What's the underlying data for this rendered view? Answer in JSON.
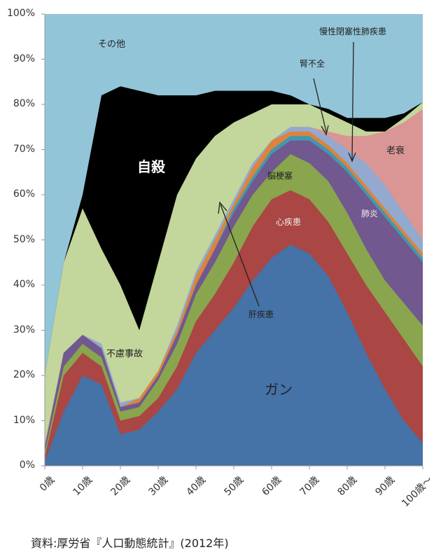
{
  "chart_data": {
    "type": "area",
    "stacked": true,
    "normalized_percent": true,
    "values_are_cumulative_tops": true,
    "x": [
      0,
      5,
      10,
      15,
      20,
      25,
      30,
      35,
      40,
      45,
      50,
      55,
      60,
      65,
      70,
      75,
      80,
      85,
      90,
      95,
      100
    ],
    "x_tick_labels": [
      "0歳",
      "10歳",
      "20歳",
      "30歳",
      "40歳",
      "50歳",
      "60歳",
      "70歳",
      "80歳",
      "90歳",
      "100歳～"
    ],
    "y_tick_labels": [
      "0%",
      "10%",
      "20%",
      "30%",
      "40%",
      "50%",
      "60%",
      "70%",
      "80%",
      "90%",
      "100%"
    ],
    "ylim": [
      0,
      100
    ],
    "series": [
      {
        "name": "ガン",
        "color": "#4572A7",
        "values": [
          1,
          12,
          20,
          18,
          7,
          8,
          12,
          17,
          25,
          30,
          35,
          41,
          46,
          49,
          47,
          42,
          34,
          25,
          17,
          10,
          5
        ]
      },
      {
        "name": "心疾患",
        "color": "#AA4643",
        "values": [
          2,
          20,
          25,
          22,
          10,
          11,
          15,
          22,
          32,
          38,
          45,
          53,
          59,
          61,
          59,
          54,
          47,
          40,
          34,
          28,
          22
        ]
      },
      {
        "name": "脳梗塞",
        "color": "#89A54E",
        "values": [
          3,
          22,
          27,
          24,
          12,
          13,
          19,
          27,
          38,
          45,
          53,
          60,
          65,
          69,
          67,
          63,
          56,
          48,
          41,
          36,
          31
        ]
      },
      {
        "name": "肺炎",
        "color": "#71588F",
        "values": [
          4,
          25,
          29,
          26,
          13,
          14,
          20,
          29,
          40,
          48,
          56,
          63,
          69,
          72,
          72,
          69,
          65,
          60,
          55,
          50,
          45
        ]
      },
      {
        "name": "慢性閉塞性肺疾患",
        "color": "#4198AF",
        "values": [
          4,
          25,
          29,
          26,
          13,
          14,
          20,
          29,
          40,
          48,
          57,
          64,
          70,
          73,
          73,
          70,
          66,
          61,
          56,
          51,
          46
        ]
      },
      {
        "name": "肝疾患",
        "color": "#DB843D",
        "values": [
          4.5,
          25,
          29,
          26,
          13,
          15,
          21,
          30,
          42,
          50,
          58,
          66,
          72,
          74,
          74,
          71,
          67,
          62,
          57,
          52,
          47
        ]
      },
      {
        "name": "腎不全",
        "color": "#93A9CF",
        "values": [
          5,
          25,
          29,
          27,
          14,
          15,
          21,
          31,
          43,
          51,
          59,
          67,
          72,
          75,
          75,
          73,
          70,
          67,
          62,
          56,
          50
        ]
      },
      {
        "name": "老衰",
        "color": "#D99694",
        "values": [
          5,
          25,
          29,
          27,
          14,
          15,
          21,
          31,
          43,
          51,
          59,
          67,
          72,
          75,
          75,
          74,
          73,
          73,
          74,
          76,
          79
        ]
      },
      {
        "name": "不慮事故",
        "color": "#C3D69B",
        "values": [
          20,
          45,
          57,
          48,
          40,
          30,
          45,
          60,
          68,
          73,
          76,
          78,
          80,
          80,
          80,
          78,
          76,
          74,
          74,
          77,
          80.5
        ]
      },
      {
        "name": "自殺",
        "color": "#000000",
        "values": [
          20,
          45,
          60,
          82,
          84,
          83,
          82,
          82,
          82,
          83,
          83,
          83,
          83,
          82,
          80,
          79,
          77,
          77,
          77,
          78,
          80.5
        ]
      },
      {
        "name": "その他",
        "color": "#93C5D8",
        "values": [
          100,
          100,
          100,
          100,
          100,
          100,
          100,
          100,
          100,
          100,
          100,
          100,
          100,
          100,
          100,
          100,
          100,
          100,
          100,
          100,
          100
        ]
      }
    ],
    "annotations": [
      "その他",
      "自殺",
      "慢性閉塞性肺疾患",
      "腎不全",
      "老衰",
      "脳梗塞",
      "心疾患",
      "肺炎",
      "肝疾患",
      "不慮事故",
      "ガン"
    ],
    "caption": "資料:厚労省『人口動態統計』(2012年)"
  }
}
